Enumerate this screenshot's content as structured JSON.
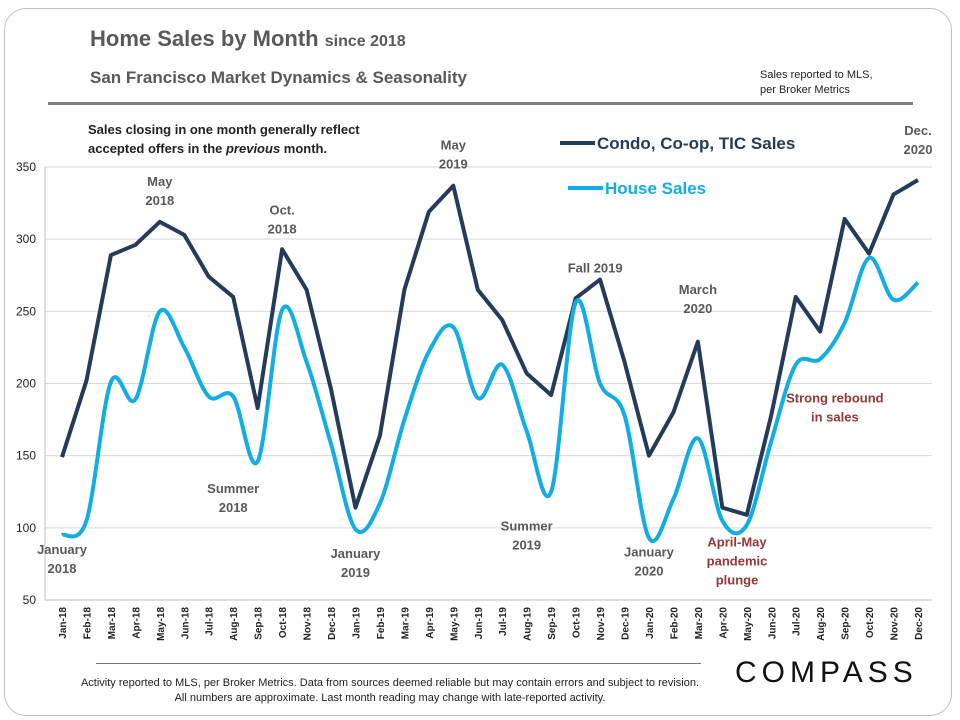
{
  "header": {
    "title": "Home Sales by Month",
    "title_suffix": "since 2018",
    "subtitle": "San Francisco Market Dynamics & Seasonality",
    "source_line1": "Sales reported to MLS,",
    "source_line2": "per Broker Metrics"
  },
  "note": {
    "line1": "Sales closing in one month generally reflect",
    "line2_a": "accepted offers in the ",
    "line2_em": "previous",
    "line2_b": " month."
  },
  "footer": {
    "disclaimer": "Activity reported to MLS, per Broker Metrics. Data from sources deemed reliable but may contain errors and subject to revision. All numbers are approximate. Last month reading may change with late-reported activity.",
    "logo": "COMPASS"
  },
  "chart_data": {
    "type": "line",
    "ylim": [
      50,
      350
    ],
    "yticks": [
      50,
      100,
      150,
      200,
      250,
      300,
      350
    ],
    "grid": true,
    "legend_placement": "top-center",
    "categories": [
      "Jan-18",
      "Feb-18",
      "Mar-18",
      "Apr-18",
      "May-18",
      "Jun-18",
      "Jul-18",
      "Aug-18",
      "Sep-18",
      "Oct-18",
      "Nov-18",
      "Dec-18",
      "Jan-19",
      "Feb-19",
      "Mar-19",
      "Apr-19",
      "May-19",
      "Jun-19",
      "Jul-19",
      "Aug-19",
      "Sep-19",
      "Oct-19",
      "Nov-19",
      "Dec-19",
      "Jan-20",
      "Feb-20",
      "Mar-20",
      "Apr-20",
      "May-20",
      "Jun-20",
      "Jul-20",
      "Aug-20",
      "Sep-20",
      "Oct-20",
      "Nov-20",
      "Dec-20"
    ],
    "series": [
      {
        "name": "Condo, Co-op, TIC Sales",
        "color": "#243b5a",
        "smooth": false,
        "values": [
          149,
          202,
          289,
          296,
          312,
          303,
          274,
          260,
          183,
          293,
          265,
          196,
          114,
          164,
          265,
          319,
          337,
          265,
          244,
          207,
          192,
          259,
          272,
          215,
          150,
          180,
          229,
          114,
          109,
          178,
          260,
          236,
          314,
          290,
          331,
          341
        ]
      },
      {
        "name": "House Sales",
        "color": "#12ade5",
        "smooth": true,
        "values": [
          95,
          105,
          201,
          189,
          250,
          225,
          191,
          191,
          146,
          251,
          215,
          158,
          99,
          117,
          175,
          222,
          239,
          190,
          213,
          167,
          125,
          256,
          200,
          178,
          93,
          120,
          162,
          105,
          102,
          160,
          213,
          217,
          242,
          287,
          258,
          270
        ]
      }
    ],
    "annotations": [
      {
        "text": [
          "January",
          "2018"
        ],
        "month": 0,
        "value": 82,
        "color": "#595959"
      },
      {
        "text": [
          "May",
          "2018"
        ],
        "month": 4,
        "value": 337,
        "color": "#595959"
      },
      {
        "text": [
          "Oct.",
          "2018"
        ],
        "month": 9,
        "value": 317,
        "color": "#595959"
      },
      {
        "text": [
          "Summer",
          "2018"
        ],
        "month": 7,
        "value": 124,
        "color": "#595959"
      },
      {
        "text": [
          "January",
          "2019"
        ],
        "month": 12,
        "value": 79,
        "color": "#595959"
      },
      {
        "text": [
          "May",
          "2019"
        ],
        "month": 16,
        "value": 362,
        "color": "#595959"
      },
      {
        "text": [
          "Summer",
          "2019"
        ],
        "month": 19,
        "value": 98,
        "color": "#595959"
      },
      {
        "text": [
          "Fall 2019"
        ],
        "month": 21.8,
        "value": 277,
        "color": "#595959"
      },
      {
        "text": [
          "March",
          "2020"
        ],
        "month": 26,
        "value": 262,
        "color": "#595959"
      },
      {
        "text": [
          "January",
          "2020"
        ],
        "month": 24,
        "value": 80,
        "color": "#595959"
      },
      {
        "text": [
          "April-May",
          "pandemic",
          "plunge"
        ],
        "month": 27.6,
        "value": 87,
        "color": "#953735"
      },
      {
        "text": [
          "Strong rebound",
          "in sales"
        ],
        "month": 31.6,
        "value": 187,
        "color": "#953735"
      },
      {
        "text": [
          "Dec.",
          "2020"
        ],
        "month": 35,
        "value": 372,
        "color": "#595959"
      }
    ]
  }
}
